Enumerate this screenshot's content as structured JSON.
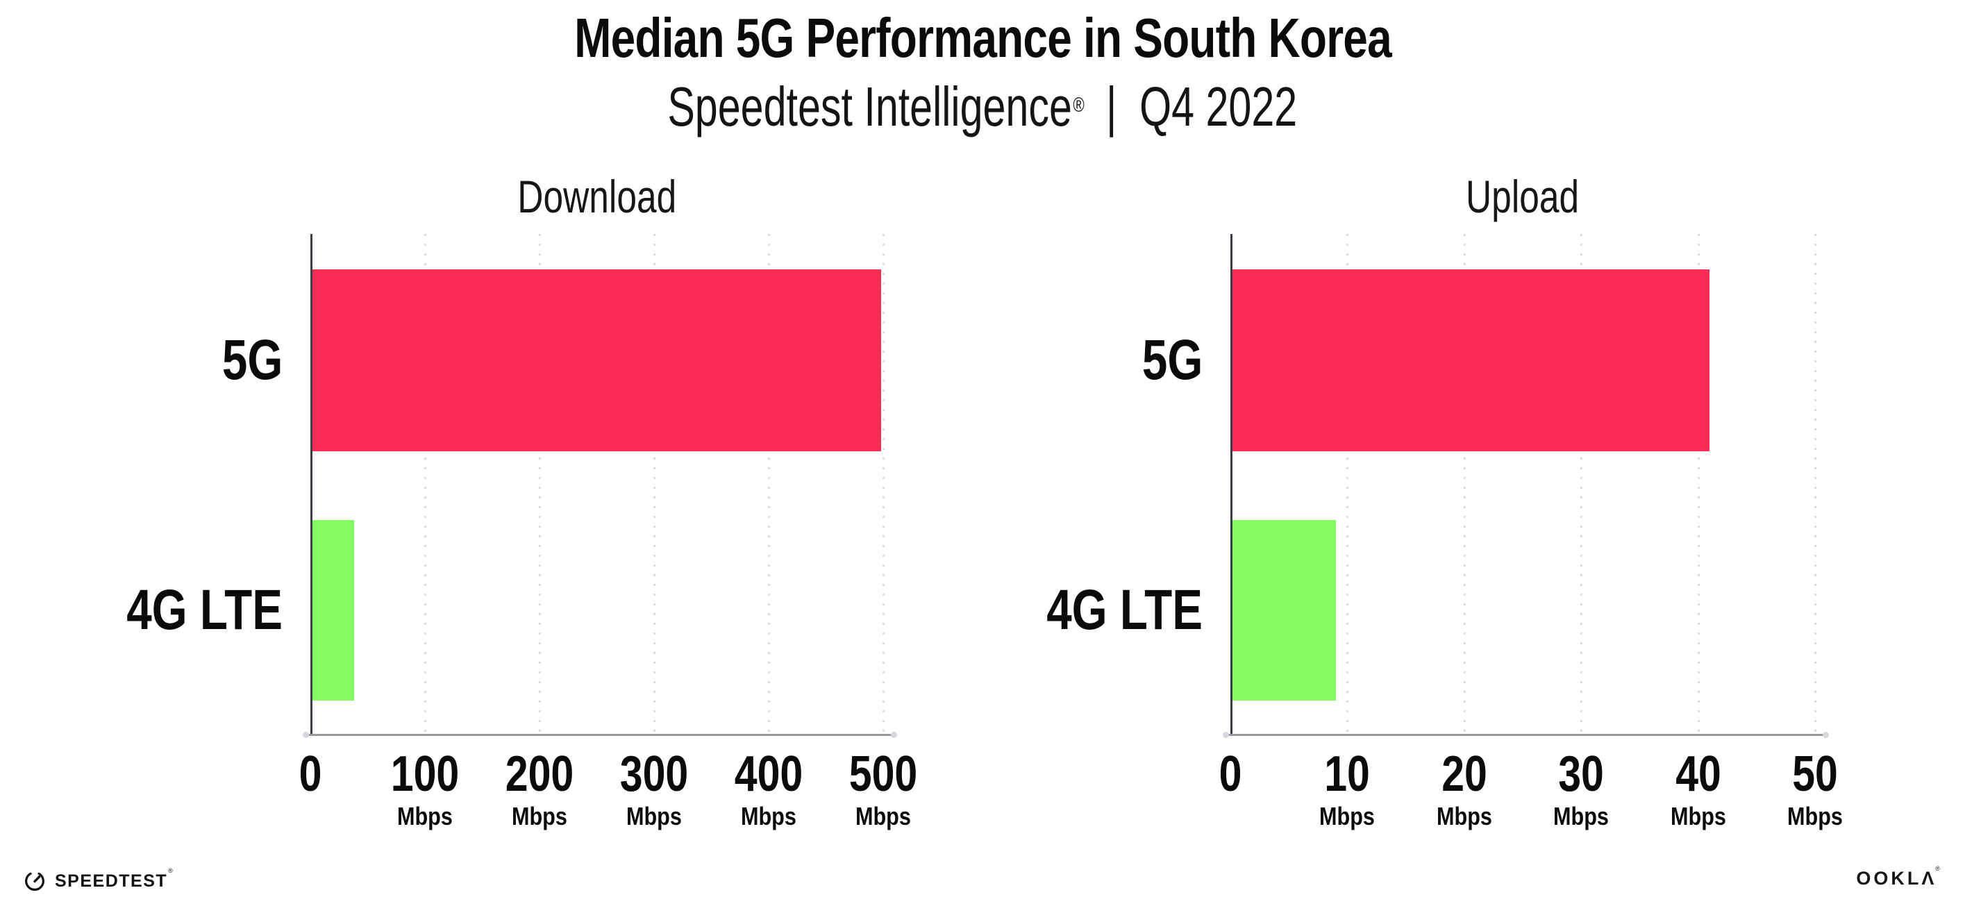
{
  "header": {
    "title": "Median 5G Performance in South Korea",
    "subtitle": {
      "brand": "Speedtest Intelligence",
      "reg": "®",
      "separator": "|",
      "period": "Q4 2022"
    }
  },
  "chart_data": [
    {
      "type": "bar",
      "orientation": "horizontal",
      "title": "Download",
      "categories": [
        "5G",
        "4G LTE"
      ],
      "values": [
        498,
        38
      ],
      "unit": "Mbps",
      "xlim": [
        0,
        500
      ],
      "xticks": [
        0,
        100,
        200,
        300,
        400,
        500
      ],
      "bar_colors": [
        "#fb2d55",
        "#83fa61"
      ],
      "grid": "dotted-vertical",
      "legend": "none"
    },
    {
      "type": "bar",
      "orientation": "horizontal",
      "title": "Upload",
      "categories": [
        "5G",
        "4G LTE"
      ],
      "values": [
        41,
        9
      ],
      "unit": "Mbps",
      "xlim": [
        0,
        50
      ],
      "xticks": [
        0,
        10,
        20,
        30,
        40,
        50
      ],
      "bar_colors": [
        "#fb2d55",
        "#83fa61"
      ],
      "grid": "dotted-vertical",
      "legend": "none"
    }
  ],
  "palette": {
    "bar_5g": "#fb2d55",
    "bar_4g_lte": "#83fa61",
    "gridline": "#dcdce8",
    "x_axis": "#97979d",
    "y_axis": "#383f47",
    "text": "#0b0b0c"
  },
  "footer": {
    "speedtest_logo": {
      "icon": "speedometer-gauge-icon",
      "text": "SPEEDTEST",
      "reg": "®"
    },
    "ookla_logo": {
      "text": "OOKLΛ",
      "reg": "®"
    }
  }
}
